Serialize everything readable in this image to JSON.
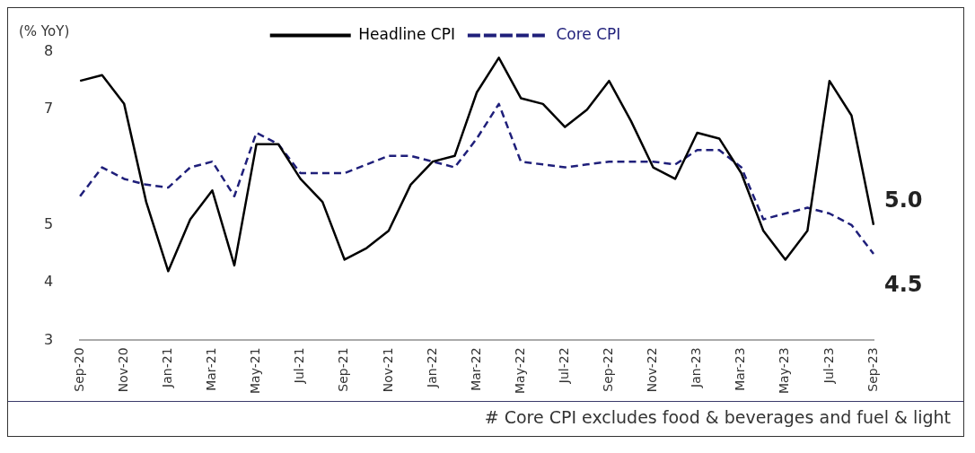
{
  "chart_data": {
    "type": "line",
    "ylabel": "(% YoY)",
    "categories": [
      "Sep-20",
      null,
      "Nov-20",
      null,
      "Jan-21",
      null,
      "Mar-21",
      null,
      "May-21",
      null,
      "Jul-21",
      null,
      "Sep-21",
      null,
      "Nov-21",
      null,
      "Jan-22",
      null,
      "Mar-22",
      null,
      "May-22",
      null,
      "Jul-22",
      null,
      "Sep-22",
      null,
      "Nov-22",
      null,
      "Jan-23",
      null,
      "Mar-23",
      null,
      "May-23",
      null,
      "Jul-23",
      null,
      "Sep-23"
    ],
    "series": [
      {
        "name": "Headline CPI",
        "color": "#000000",
        "line_style": "solid",
        "values": [
          7.5,
          7.6,
          7.1,
          5.4,
          4.2,
          5.1,
          5.6,
          4.3,
          6.4,
          6.4,
          5.8,
          5.4,
          4.4,
          4.6,
          4.9,
          5.7,
          6.1,
          6.2,
          7.3,
          7.9,
          7.2,
          7.1,
          6.7,
          7.0,
          7.5,
          6.8,
          6.0,
          5.8,
          6.6,
          6.5,
          5.9,
          4.9,
          4.4,
          4.9,
          7.5,
          6.9,
          5.0
        ],
        "value_labels": [
          null,
          null,
          null,
          null,
          null,
          null,
          null,
          null,
          null,
          null,
          null,
          null,
          null,
          null,
          null,
          null,
          null,
          null,
          null,
          null,
          null,
          null,
          null,
          null,
          null,
          null,
          null,
          null,
          null,
          null,
          null,
          null,
          null,
          null,
          null,
          null,
          "5.0"
        ]
      },
      {
        "name": "Core CPI",
        "color": "#1f1f7a",
        "line_style": "dashed",
        "values": [
          5.5,
          6.0,
          5.8,
          5.7,
          5.65,
          6.0,
          6.1,
          5.5,
          6.6,
          6.4,
          5.9,
          5.9,
          5.9,
          6.05,
          6.2,
          6.2,
          6.1,
          6.0,
          6.5,
          7.1,
          6.1,
          6.05,
          6.0,
          6.05,
          6.1,
          6.1,
          6.1,
          6.05,
          6.3,
          6.3,
          6.0,
          5.1,
          5.2,
          5.3,
          5.2,
          5.0,
          4.5
        ],
        "value_labels": [
          null,
          null,
          null,
          null,
          null,
          null,
          null,
          null,
          null,
          null,
          null,
          null,
          null,
          null,
          null,
          null,
          null,
          null,
          null,
          null,
          null,
          null,
          null,
          null,
          null,
          null,
          null,
          null,
          null,
          null,
          null,
          null,
          null,
          null,
          null,
          null,
          "4.5"
        ]
      }
    ],
    "ylim": [
      3,
      8
    ],
    "yticks": [
      3,
      4,
      5,
      7,
      8
    ],
    "grid": false,
    "legend": "top",
    "marker": "none",
    "annotations": [
      "# Core CPI excludes food & beverages and fuel & light"
    ]
  }
}
